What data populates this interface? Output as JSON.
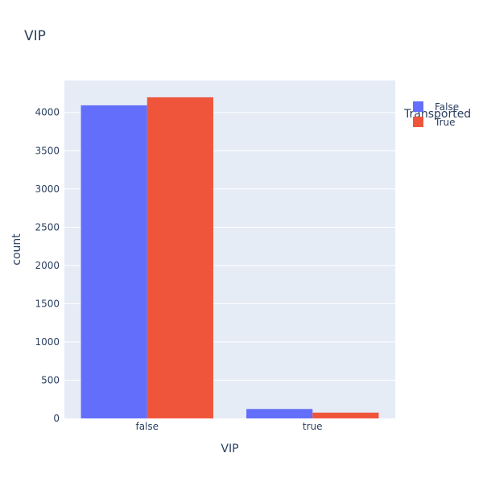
{
  "chart_data": {
    "type": "bar",
    "title": "VIP",
    "xlabel": "VIP",
    "ylabel": "count",
    "categories": [
      "false",
      "true"
    ],
    "series": [
      {
        "name": "False",
        "values": [
          4093,
          123
        ],
        "color": "#636efa"
      },
      {
        "name": "True",
        "values": [
          4198,
          76
        ],
        "color": "#ef553b"
      }
    ],
    "ylim": [
      0,
      4418
    ],
    "yticks": [
      0,
      500,
      1000,
      1500,
      2000,
      2500,
      3000,
      3500,
      4000
    ],
    "legend": {
      "title": "Transported",
      "placement": "top-right"
    },
    "grid": true,
    "plot_background": "#e5ecf6"
  }
}
